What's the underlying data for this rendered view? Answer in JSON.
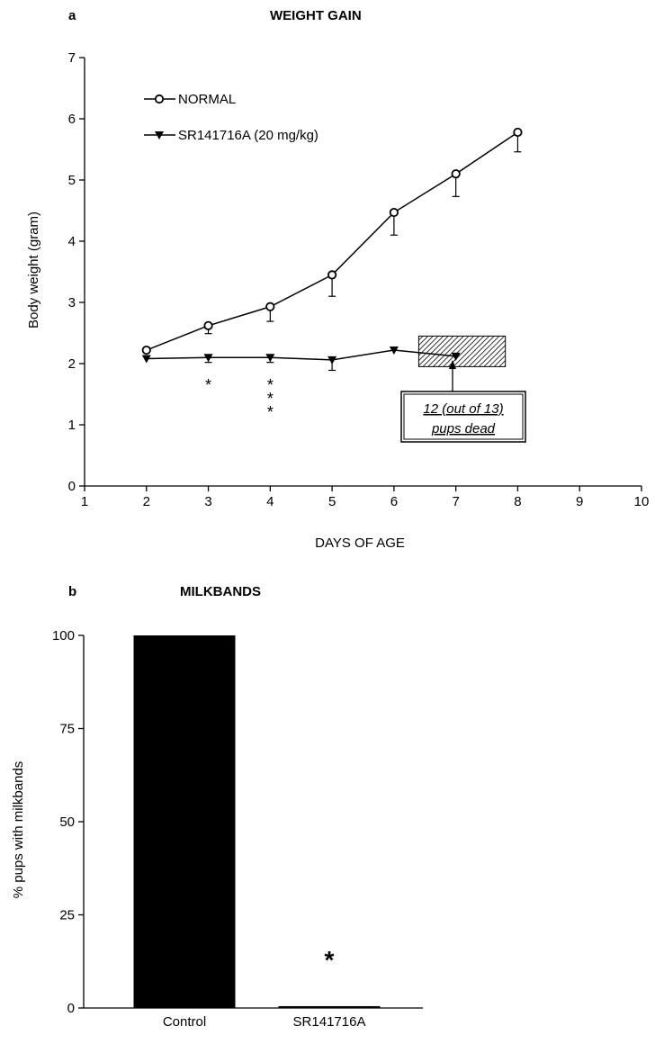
{
  "chart_data": [
    {
      "panel_label": "a",
      "type": "line",
      "title": "WEIGHT GAIN",
      "xlabel": "DAYS OF AGE",
      "ylabel": "Body weight (gram)",
      "xlim": [
        1,
        10
      ],
      "ylim": [
        0,
        7
      ],
      "x_ticks": [
        "1",
        "2",
        "3",
        "4",
        "5",
        "6",
        "7",
        "8",
        "9",
        "10"
      ],
      "y_ticks": [
        "0",
        "1",
        "2",
        "3",
        "4",
        "5",
        "6",
        "7"
      ],
      "legend_position": "top-left",
      "series": [
        {
          "name": "NORMAL",
          "marker": "open-circle",
          "x": [
            2,
            3,
            4,
            5,
            6,
            7,
            8
          ],
          "y": [
            2.22,
            2.62,
            2.93,
            3.45,
            4.47,
            5.1,
            5.78
          ],
          "err": [
            0.0,
            0.13,
            0.24,
            0.35,
            0.37,
            0.37,
            0.32
          ]
        },
        {
          "name": "SR141716A (20 mg/kg)",
          "marker": "filled-down-triangle",
          "x": [
            2,
            3,
            4,
            5,
            6,
            7
          ],
          "y": [
            2.08,
            2.1,
            2.1,
            2.06,
            2.22,
            2.12
          ],
          "err": [
            0.0,
            0.08,
            0.08,
            0.17,
            0.0,
            0.0
          ]
        }
      ],
      "significance": [
        {
          "x": 3,
          "label": "*"
        },
        {
          "x": 4,
          "label": "* * *"
        }
      ],
      "annotation": {
        "line1": "12 (out of 13)",
        "line2": "pups dead",
        "shaded_x": [
          6.4,
          7.8
        ],
        "shaded_y": [
          1.95,
          2.45
        ]
      }
    },
    {
      "panel_label": "b",
      "type": "bar",
      "title": "MILKBANDS",
      "ylabel": "% pups with milkbands",
      "categories": [
        "Control",
        "SR141716A"
      ],
      "values": [
        100,
        0.5
      ],
      "ylim": [
        0,
        100
      ],
      "y_ticks": [
        "0",
        "25",
        "50",
        "75",
        "100"
      ],
      "significance": [
        {
          "category": "SR141716A",
          "label": "*"
        }
      ],
      "bar_color": "#000000"
    }
  ]
}
